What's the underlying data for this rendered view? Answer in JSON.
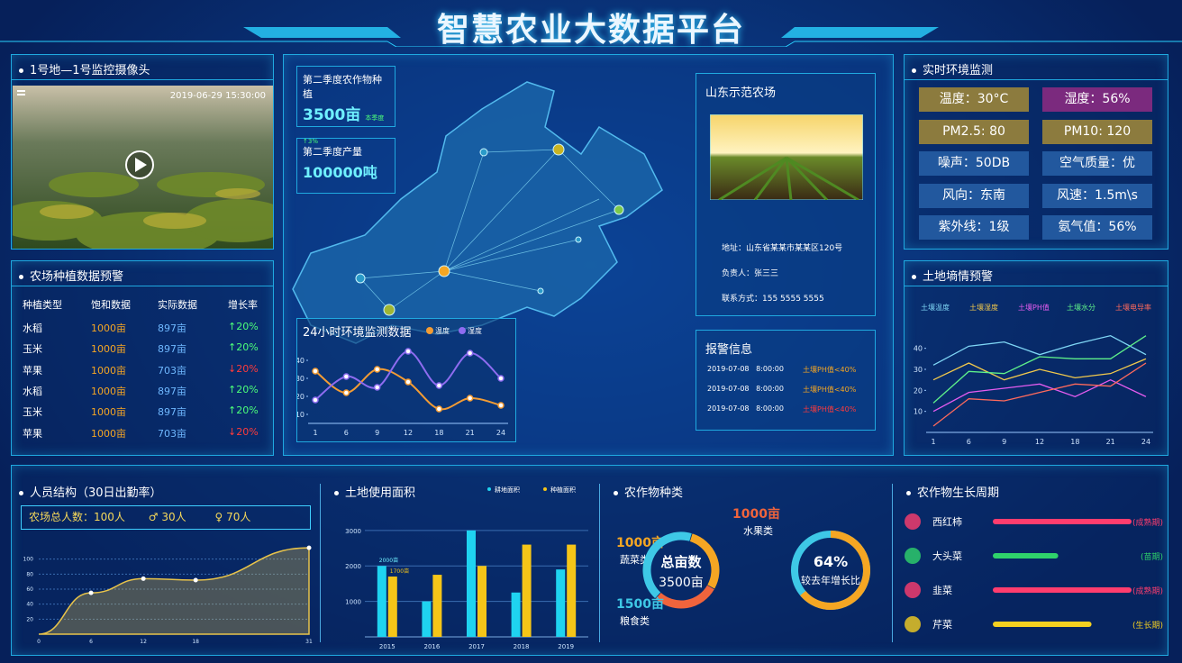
{
  "header": {
    "title": "智慧农业大数据平台"
  },
  "camera": {
    "title": "1号地—1号监控摄像头",
    "timestamp": "2019-06-29 15:30:00"
  },
  "planting_warning": {
    "title": "农场种植数据预警",
    "columns": [
      "种植类型",
      "饱和数据",
      "实际数据",
      "增长率"
    ],
    "rows": [
      [
        "水稻",
        "1000亩",
        "897亩",
        "↑20%"
      ],
      [
        "玉米",
        "1000亩",
        "897亩",
        "↑20%"
      ],
      [
        "苹果",
        "1000亩",
        "703亩",
        "↓20%"
      ],
      [
        "水稻",
        "1000亩",
        "897亩",
        "↑20%"
      ],
      [
        "玉米",
        "1000亩",
        "897亩",
        "↑20%"
      ],
      [
        "苹果",
        "1000亩",
        "703亩",
        "↓20%"
      ]
    ]
  },
  "map": {
    "stats": [
      {
        "label": "第二季度农作物种植",
        "value": "3500亩",
        "note": "本季度↑3%"
      },
      {
        "label": "第二季度产量",
        "value": "100000吨"
      }
    ]
  },
  "env_24h": {
    "type": "line",
    "title": "24小时环境监测数据",
    "categories": [
      "1",
      "6",
      "9",
      "12",
      "18",
      "21",
      "24"
    ],
    "series": [
      {
        "name": "温度",
        "color": "#f39c34",
        "values": [
          34,
          22,
          35,
          28,
          13,
          19,
          15
        ]
      },
      {
        "name": "湿度",
        "color": "#8e6cf0",
        "values": [
          18,
          31,
          25,
          45,
          26,
          44,
          30
        ]
      }
    ],
    "ylim": [
      5,
      48
    ],
    "yticks": [
      10,
      20,
      30,
      40
    ]
  },
  "farm": {
    "title": "山东示范农场",
    "address": "地址：山东省某某市某某区120号",
    "person": "负责人：张三三",
    "contact": "联系方式：155 5555 5555"
  },
  "alarms": {
    "title": "报警信息",
    "items": [
      {
        "time": "2019-07-08   8:00:00",
        "text": "土壤PH值<40%",
        "color": "#f5a623"
      },
      {
        "time": "2019-07-08   8:00:00",
        "text": "土壤PH值<40%",
        "color": "#f5a623"
      },
      {
        "time": "2019-07-08   8:00:00",
        "text": "土壤PH值<40%",
        "color": "#ff3b3b"
      }
    ]
  },
  "environment": {
    "title": "实时环境监测",
    "items": [
      {
        "text": "温度：30°C",
        "color": "#8c7b3e"
      },
      {
        "text": "湿度：56%",
        "color": "#7b2a7e"
      },
      {
        "text": "PM2.5: 80",
        "color": "#8c7b3e"
      },
      {
        "text": "PM10: 120",
        "color": "#8c7b3e"
      },
      {
        "text": "噪声：50DB",
        "color": "#22589e"
      },
      {
        "text": "空气质量：优",
        "color": "#22589e"
      },
      {
        "text": "风向：东南",
        "color": "#22589e"
      },
      {
        "text": "风速：1.5m\\s",
        "color": "#22589e"
      },
      {
        "text": "紫外线：1级",
        "color": "#22589e"
      },
      {
        "text": "氨气值：56%",
        "color": "#22589e"
      }
    ]
  },
  "soil": {
    "type": "line",
    "title": "土地墒情预警",
    "categories": [
      "1",
      "6",
      "9",
      "12",
      "18",
      "21",
      "24"
    ],
    "series": [
      {
        "name": "土壤温度",
        "color": "#7fd6f5",
        "values": [
          32,
          41,
          43,
          37,
          42,
          46,
          37
        ]
      },
      {
        "name": "土壤湿度",
        "color": "#f2c94c",
        "values": [
          25,
          33,
          25,
          30,
          26,
          28,
          35
        ]
      },
      {
        "name": "土壤PH值",
        "color": "#e65cf0",
        "values": [
          10,
          19,
          21,
          23,
          17,
          25,
          17
        ]
      },
      {
        "name": "土壤水分",
        "color": "#5ef08a",
        "values": [
          14,
          29,
          28,
          36,
          35,
          35,
          46
        ]
      },
      {
        "name": "土壤电导率",
        "color": "#ff6a5c",
        "values": [
          3,
          16,
          15,
          19,
          23,
          22,
          33
        ]
      }
    ],
    "ylim": [
      0,
      48
    ],
    "yticks": [
      10,
      20,
      30,
      40
    ]
  },
  "personnel": {
    "title": "人员结构（30日出勤率）",
    "total": "农场总人数：100人",
    "male": "30人",
    "female": "70人",
    "chart": {
      "type": "area",
      "x": [
        0,
        6,
        12,
        18,
        31
      ],
      "values": [
        0,
        55,
        74,
        72,
        115
      ],
      "xlim": [
        0,
        31
      ],
      "xticks": [
        0,
        6,
        12,
        18,
        31
      ],
      "ylim": [
        0,
        120
      ],
      "yticks": [
        20,
        40,
        60,
        80,
        100
      ],
      "color": "#e8c34a"
    }
  },
  "land": {
    "type": "bar",
    "title": "土地使用面积",
    "categories": [
      "2015",
      "2016",
      "2017",
      "2018",
      "2019"
    ],
    "series": [
      {
        "name": "耕地面积",
        "color": "#1fd3f0",
        "values": [
          2000,
          1000,
          3000,
          1250,
          1900
        ],
        "value_labels": [
          "2000亩",
          null,
          null,
          null,
          null
        ]
      },
      {
        "name": "种植面积",
        "color": "#f5c518",
        "values": [
          1700,
          1750,
          2000,
          2600,
          2600
        ],
        "value_labels": [
          "1700亩",
          null,
          null,
          null,
          null
        ]
      }
    ],
    "ylim": [
      0,
      3300
    ],
    "yticks": [
      1000,
      2000,
      3000
    ]
  },
  "crops": {
    "type": "pie",
    "title": "农作物种类",
    "center_label": "总亩数",
    "center_value": "3500亩",
    "categories": [
      "蔬菜类",
      "水果类",
      "粮食类"
    ],
    "values": [
      1000,
      1000,
      1500
    ],
    "value_labels": [
      "1000亩",
      "1000亩",
      "1500亩"
    ],
    "colors": [
      "#f5a623",
      "#f0643c",
      "#3ec8e6"
    ],
    "growth": {
      "values": [
        64
      ],
      "value_labels": [
        "64%"
      ],
      "caption": "较去年增长比"
    }
  },
  "growth_cycle": {
    "title": "农作物生长周期",
    "xlim": [
      0,
      100
    ],
    "items": [
      {
        "name": "西红柿",
        "stage": "(成熟期)",
        "progress": 100,
        "color": "#ff3d6e"
      },
      {
        "name": "大头菜",
        "stage": "(苗期)",
        "progress": 45,
        "color": "#2fd36b"
      },
      {
        "name": "韭菜",
        "stage": "(成熟期)",
        "progress": 100,
        "color": "#ff3d6e"
      },
      {
        "name": "芹菜",
        "stage": "(生长期)",
        "progress": 70,
        "color": "#f5d020"
      }
    ]
  }
}
